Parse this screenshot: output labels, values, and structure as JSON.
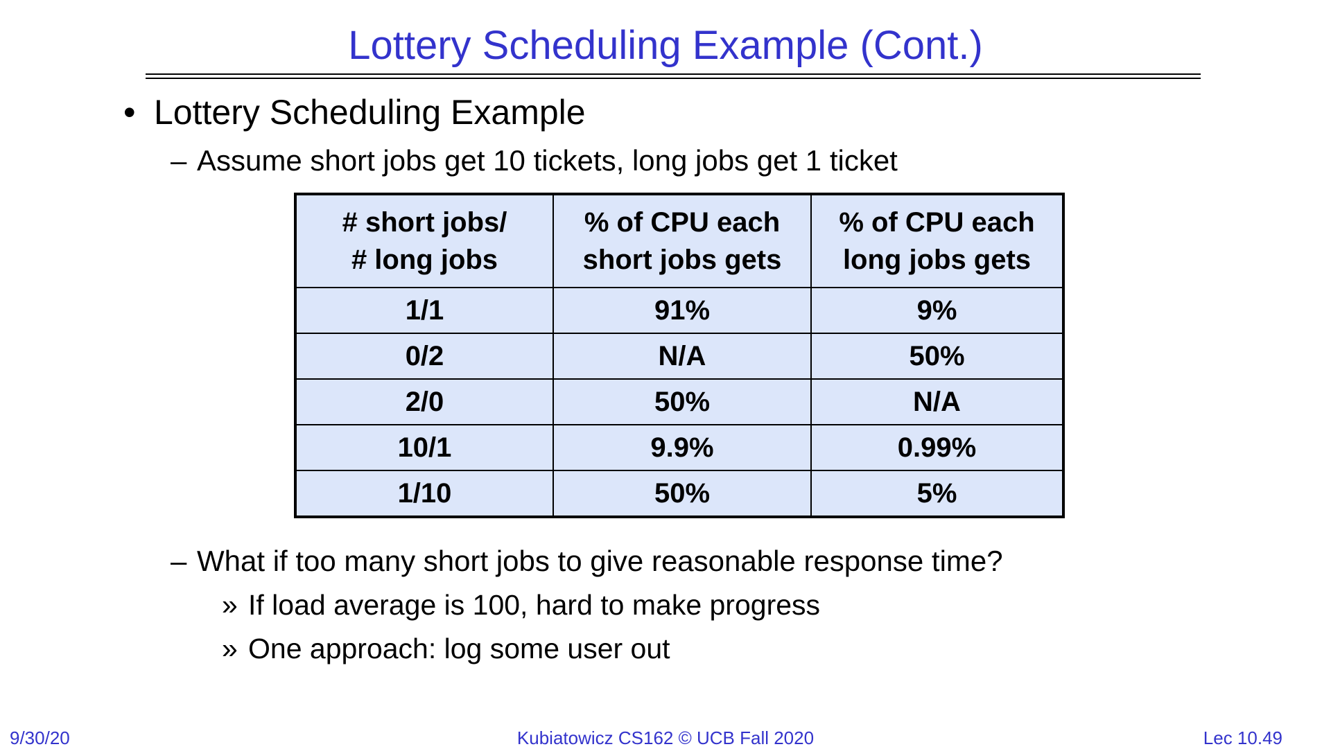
{
  "slide": {
    "title": "Lottery Scheduling Example (Cont.)",
    "bullet": "Lottery Scheduling Example",
    "bullet_marker": "•",
    "dash_marker": "–",
    "sub_marker": "»",
    "point1": "Assume short jobs get 10 tickets, long jobs get 1 ticket",
    "point2": "What if too many short jobs to give reasonable response time?",
    "sub1": "If load average is 100, hard to make progress",
    "sub2": "One approach: log some user out"
  },
  "table": {
    "headers": [
      [
        "# short jobs/",
        "# long jobs"
      ],
      [
        "% of CPU each",
        "short jobs gets"
      ],
      [
        "% of CPU each",
        "long jobs gets"
      ]
    ],
    "rows": [
      [
        "1/1",
        "91%",
        "9%"
      ],
      [
        "0/2",
        "N/A",
        "50%"
      ],
      [
        "2/0",
        "50%",
        "N/A"
      ],
      [
        "10/1",
        "9.9%",
        "0.99%"
      ],
      [
        "1/10",
        "50%",
        "5%"
      ]
    ]
  },
  "footer": {
    "date": "9/30/20",
    "course": "Kubiatowicz CS162 © UCB Fall 2020",
    "lecture": "Lec 10.49"
  },
  "colors": {
    "title": "#3333cc",
    "table_fill": "#dce6fa"
  }
}
